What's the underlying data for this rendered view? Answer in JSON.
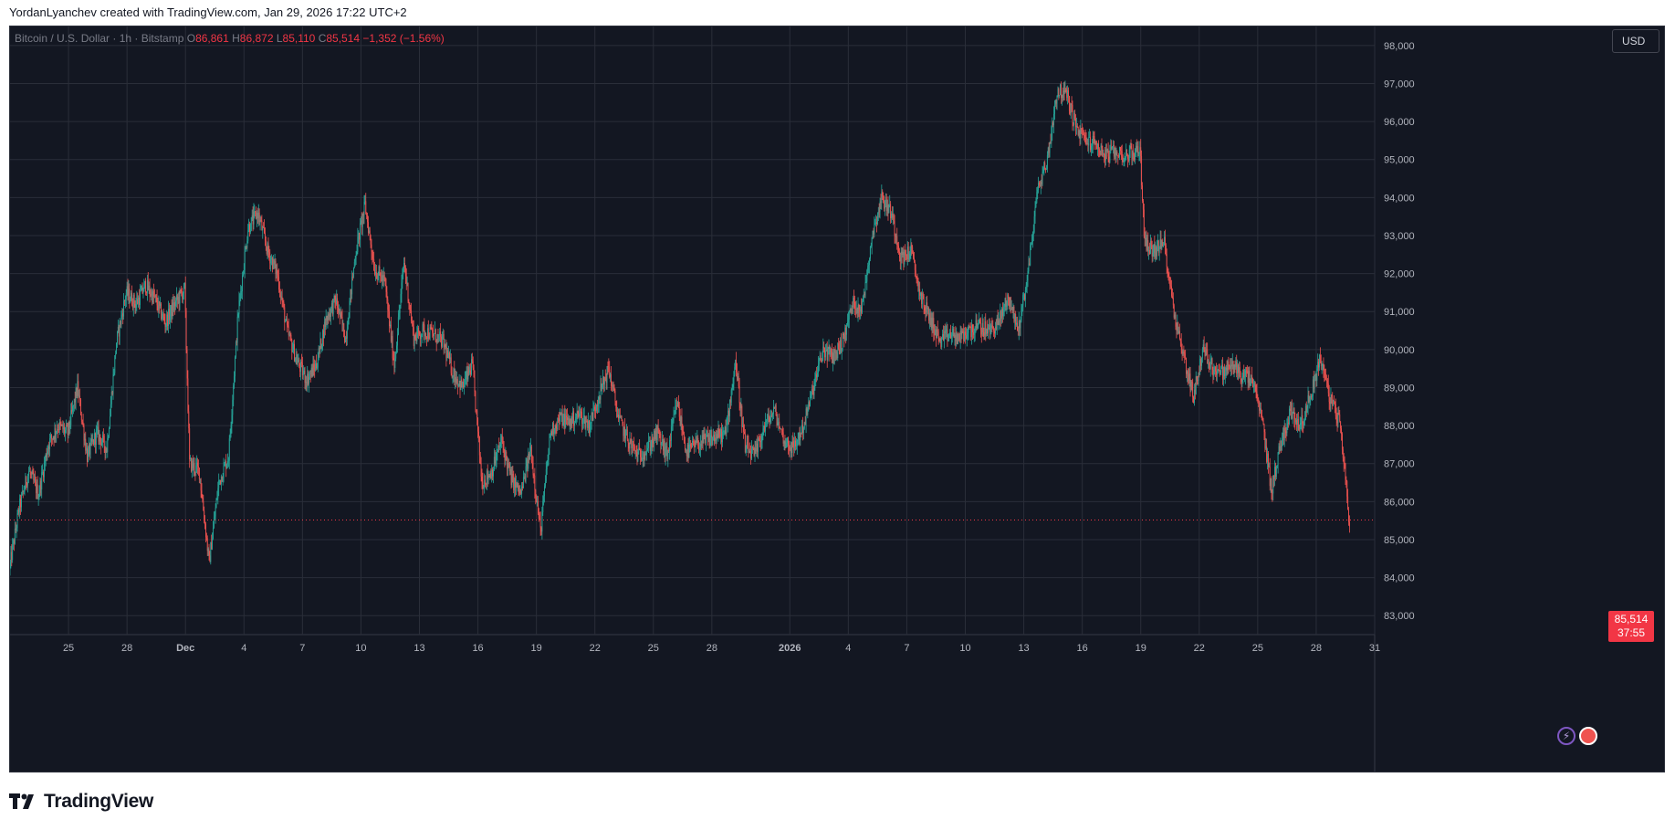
{
  "header": {
    "created_text": "YordanLyanchev created with TradingView.com, Jan 29, 2026 17:22 UTC+2"
  },
  "legend": {
    "symbol": "Bitcoin / U.S. Dollar · 1h · Bitstamp",
    "o_label": "O",
    "o_value": "86,861",
    "h_label": "H",
    "h_value": "86,872",
    "l_label": "L",
    "l_value": "85,110",
    "c_label": "C",
    "c_value": "85,514",
    "change": "−1,352 (−1.56%)"
  },
  "currency_button": "USD",
  "last_price": {
    "price": "85,514",
    "countdown": "37:55"
  },
  "icons": {
    "bolt": "lightning-icon",
    "flag": "us-flag-icon",
    "logo": "tradingview-logo-icon"
  },
  "brand": {
    "name": "TradingView"
  },
  "colors": {
    "background": "#131722",
    "grid": "#2a2e39",
    "up": "#26a69a",
    "down": "#ef5350",
    "axis_text": "#b2b5be",
    "last_price": "#f23645"
  },
  "chart_data": {
    "type": "candlestick",
    "interval": "1h",
    "ylim": [
      82500,
      98500
    ],
    "y_ticks": [
      83000,
      84000,
      85000,
      86000,
      87000,
      88000,
      89000,
      90000,
      91000,
      92000,
      93000,
      94000,
      95000,
      96000,
      97000,
      98000
    ],
    "y_tick_labels": [
      "83,000",
      "84,000",
      "85,000",
      "86,000",
      "87,000",
      "88,000",
      "89,000",
      "90,000",
      "91,000",
      "92,000",
      "93,000",
      "94,000",
      "95,000",
      "96,000",
      "97,000",
      "98,000"
    ],
    "x_start": "2025-11-22",
    "x_end": "2026-01-31",
    "x_ticks": [
      {
        "date": "2025-11-25",
        "label": "25"
      },
      {
        "date": "2025-11-28",
        "label": "28"
      },
      {
        "date": "2025-12-01",
        "label": "Dec"
      },
      {
        "date": "2025-12-04",
        "label": "4"
      },
      {
        "date": "2025-12-07",
        "label": "7"
      },
      {
        "date": "2025-12-10",
        "label": "10"
      },
      {
        "date": "2025-12-13",
        "label": "13"
      },
      {
        "date": "2025-12-16",
        "label": "16"
      },
      {
        "date": "2025-12-19",
        "label": "19"
      },
      {
        "date": "2025-12-22",
        "label": "22"
      },
      {
        "date": "2025-12-25",
        "label": "25"
      },
      {
        "date": "2025-12-28",
        "label": "28"
      },
      {
        "date": "2026-01-01",
        "label": "2026"
      },
      {
        "date": "2026-01-04",
        "label": "4"
      },
      {
        "date": "2026-01-07",
        "label": "7"
      },
      {
        "date": "2026-01-10",
        "label": "10"
      },
      {
        "date": "2026-01-13",
        "label": "13"
      },
      {
        "date": "2026-01-16",
        "label": "16"
      },
      {
        "date": "2026-01-19",
        "label": "19"
      },
      {
        "date": "2026-01-22",
        "label": "22"
      },
      {
        "date": "2026-01-25",
        "label": "25"
      },
      {
        "date": "2026-01-28",
        "label": "28"
      },
      {
        "date": "2026-01-31",
        "label": "31"
      }
    ],
    "last_close": 85514,
    "price_path": [
      [
        "2025-11-22 00:00",
        84200
      ],
      [
        "2025-11-22 12:00",
        85800
      ],
      [
        "2025-11-23 00:00",
        86800
      ],
      [
        "2025-11-23 12:00",
        86200
      ],
      [
        "2025-11-24 00:00",
        87500
      ],
      [
        "2025-11-24 12:00",
        88000
      ],
      [
        "2025-11-25 00:00",
        87800
      ],
      [
        "2025-11-25 12:00",
        89000
      ],
      [
        "2025-11-26 00:00",
        87200
      ],
      [
        "2025-11-26 12:00",
        87800
      ],
      [
        "2025-11-27 00:00",
        87400
      ],
      [
        "2025-11-27 12:00",
        90200
      ],
      [
        "2025-11-28 00:00",
        91500
      ],
      [
        "2025-11-28 12:00",
        91200
      ],
      [
        "2025-11-29 00:00",
        91700
      ],
      [
        "2025-11-29 12:00",
        91300
      ],
      [
        "2025-11-30 00:00",
        90700
      ],
      [
        "2025-11-30 12:00",
        91200
      ],
      [
        "2025-12-01 00:00",
        91600
      ],
      [
        "2025-12-01 06:00",
        87000
      ],
      [
        "2025-12-01 18:00",
        86800
      ],
      [
        "2025-12-02 06:00",
        84400
      ],
      [
        "2025-12-02 18:00",
        86500
      ],
      [
        "2025-12-03 06:00",
        87200
      ],
      [
        "2025-12-03 18:00",
        91000
      ],
      [
        "2025-12-04 06:00",
        93200
      ],
      [
        "2025-12-04 18:00",
        93600
      ],
      [
        "2025-12-05 06:00",
        92600
      ],
      [
        "2025-12-05 18:00",
        92000
      ],
      [
        "2025-12-06 06:00",
        90500
      ],
      [
        "2025-12-06 18:00",
        89700
      ],
      [
        "2025-12-07 06:00",
        89200
      ],
      [
        "2025-12-07 18:00",
        89600
      ],
      [
        "2025-12-08 06:00",
        90800
      ],
      [
        "2025-12-08 18:00",
        91300
      ],
      [
        "2025-12-09 06:00",
        90300
      ],
      [
        "2025-12-09 18:00",
        92500
      ],
      [
        "2025-12-10 06:00",
        93800
      ],
      [
        "2025-12-10 18:00",
        92100
      ],
      [
        "2025-12-11 06:00",
        91800
      ],
      [
        "2025-12-11 18:00",
        89600
      ],
      [
        "2025-12-12 06:00",
        92300
      ],
      [
        "2025-12-12 18:00",
        90300
      ],
      [
        "2025-12-13 06:00",
        90500
      ],
      [
        "2025-12-13 18:00",
        90400
      ],
      [
        "2025-12-14 06:00",
        90200
      ],
      [
        "2025-12-14 18:00",
        89400
      ],
      [
        "2025-12-15 06:00",
        89000
      ],
      [
        "2025-12-15 18:00",
        89600
      ],
      [
        "2025-12-16 06:00",
        86500
      ],
      [
        "2025-12-16 18:00",
        86800
      ],
      [
        "2025-12-17 06:00",
        87600
      ],
      [
        "2025-12-17 18:00",
        86600
      ],
      [
        "2025-12-18 06:00",
        86200
      ],
      [
        "2025-12-18 18:00",
        87400
      ],
      [
        "2025-12-19 06:00",
        85200
      ],
      [
        "2025-12-19 18:00",
        87800
      ],
      [
        "2025-12-20 06:00",
        88200
      ],
      [
        "2025-12-20 18:00",
        88100
      ],
      [
        "2025-12-21 06:00",
        88300
      ],
      [
        "2025-12-21 18:00",
        88000
      ],
      [
        "2025-12-22 06:00",
        88800
      ],
      [
        "2025-12-22 18:00",
        89500
      ],
      [
        "2025-12-23 06:00",
        88200
      ],
      [
        "2025-12-23 18:00",
        87600
      ],
      [
        "2025-12-24 06:00",
        87200
      ],
      [
        "2025-12-24 18:00",
        87400
      ],
      [
        "2025-12-25 06:00",
        87800
      ],
      [
        "2025-12-25 18:00",
        87200
      ],
      [
        "2025-12-26 06:00",
        88600
      ],
      [
        "2025-12-26 18:00",
        87300
      ],
      [
        "2025-12-27 06:00",
        87500
      ],
      [
        "2025-12-27 18:00",
        87600
      ],
      [
        "2025-12-28 06:00",
        87700
      ],
      [
        "2025-12-28 18:00",
        87800
      ],
      [
        "2025-12-29 06:00",
        89700
      ],
      [
        "2025-12-29 18:00",
        87400
      ],
      [
        "2025-12-30 06:00",
        87200
      ],
      [
        "2025-12-30 18:00",
        88000
      ],
      [
        "2025-12-31 06:00",
        88400
      ],
      [
        "2025-12-31 18:00",
        87600
      ],
      [
        "2026-01-01 06:00",
        87400
      ],
      [
        "2026-01-01 18:00",
        88000
      ],
      [
        "2026-01-02 06:00",
        89000
      ],
      [
        "2026-01-02 18:00",
        90000
      ],
      [
        "2026-01-03 06:00",
        89800
      ],
      [
        "2026-01-03 18:00",
        90200
      ],
      [
        "2026-01-04 06:00",
        91200
      ],
      [
        "2026-01-04 18:00",
        91100
      ],
      [
        "2026-01-05 06:00",
        93000
      ],
      [
        "2026-01-05 18:00",
        94000
      ],
      [
        "2026-01-06 06:00",
        93600
      ],
      [
        "2026-01-06 18:00",
        92400
      ],
      [
        "2026-01-07 06:00",
        92600
      ],
      [
        "2026-01-07 18:00",
        91400
      ],
      [
        "2026-01-08 06:00",
        90800
      ],
      [
        "2026-01-08 18:00",
        90200
      ],
      [
        "2026-01-09 06:00",
        90400
      ],
      [
        "2026-01-09 18:00",
        90300
      ],
      [
        "2026-01-10 06:00",
        90500
      ],
      [
        "2026-01-10 18:00",
        90600
      ],
      [
        "2026-01-11 06:00",
        90500
      ],
      [
        "2026-01-11 18:00",
        90700
      ],
      [
        "2026-01-12 06:00",
        91400
      ],
      [
        "2026-01-12 18:00",
        90500
      ],
      [
        "2026-01-13 06:00",
        92000
      ],
      [
        "2026-01-13 18:00",
        94200
      ],
      [
        "2026-01-14 06:00",
        95000
      ],
      [
        "2026-01-14 18:00",
        96800
      ],
      [
        "2026-01-15 06:00",
        96700
      ],
      [
        "2026-01-15 18:00",
        95800
      ],
      [
        "2026-01-16 06:00",
        95500
      ],
      [
        "2026-01-16 18:00",
        95400
      ],
      [
        "2026-01-17 06:00",
        95100
      ],
      [
        "2026-01-17 18:00",
        95200
      ],
      [
        "2026-01-18 06:00",
        95100
      ],
      [
        "2026-01-18 18:00",
        95200
      ],
      [
        "2026-01-19 00:00",
        95300
      ],
      [
        "2026-01-19 06:00",
        92800
      ],
      [
        "2026-01-19 18:00",
        92600
      ],
      [
        "2026-01-20 06:00",
        92800
      ],
      [
        "2026-01-20 18:00",
        91000
      ],
      [
        "2026-01-21 06:00",
        89800
      ],
      [
        "2026-01-21 18:00",
        88800
      ],
      [
        "2026-01-22 06:00",
        90000
      ],
      [
        "2026-01-22 18:00",
        89500
      ],
      [
        "2026-01-23 06:00",
        89400
      ],
      [
        "2026-01-23 18:00",
        89600
      ],
      [
        "2026-01-24 06:00",
        89300
      ],
      [
        "2026-01-24 18:00",
        89200
      ],
      [
        "2026-01-25 06:00",
        88200
      ],
      [
        "2026-01-25 18:00",
        86300
      ],
      [
        "2026-01-26 06:00",
        87600
      ],
      [
        "2026-01-26 18:00",
        88400
      ],
      [
        "2026-01-27 06:00",
        88000
      ],
      [
        "2026-01-27 18:00",
        88800
      ],
      [
        "2026-01-28 06:00",
        89800
      ],
      [
        "2026-01-28 18:00",
        88700
      ],
      [
        "2026-01-29 06:00",
        88100
      ],
      [
        "2026-01-29 12:00",
        86900
      ],
      [
        "2026-01-29 17:00",
        85514
      ]
    ]
  }
}
